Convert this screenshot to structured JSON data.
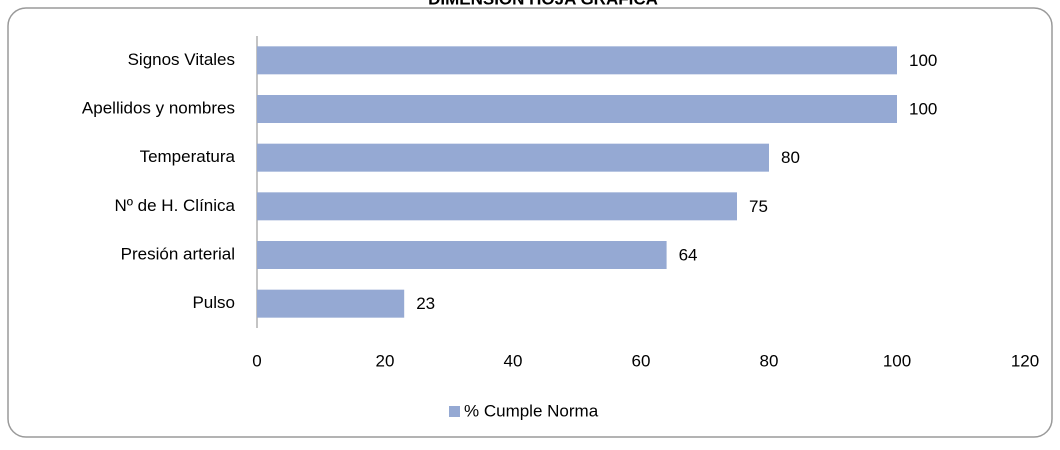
{
  "chart_data": {
    "type": "bar",
    "orientation": "horizontal",
    "title": "DIMENSIÓN HOJA GRÁFICA",
    "categories": [
      "Signos Vitales",
      "Apellidos y nombres",
      "Temperatura",
      "Nº de H. Clínica",
      "Presión arterial",
      "Pulso"
    ],
    "series": [
      {
        "name": "% Cumple Norma",
        "color": "#95a9d3",
        "values": [
          100,
          100,
          80,
          75,
          64,
          23
        ]
      }
    ],
    "xlim": [
      0,
      120
    ],
    "xticks": [
      0,
      20,
      40,
      60,
      80,
      100,
      120
    ],
    "grid": false,
    "legend": "bottom"
  }
}
